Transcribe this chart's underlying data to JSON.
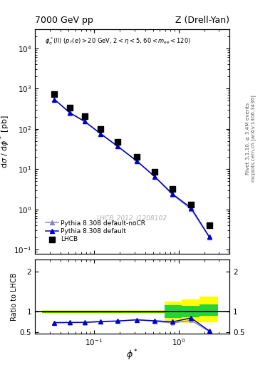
{
  "title_left": "7000 GeV pp",
  "title_right": "Z (Drell-Yan)",
  "annotation": "$\\phi^*_{\\eta}(ll)$ ($p_T(e) > 20$ GeV, $2 <\\eta < 5$, $60 < m_{ee} < 120$)",
  "watermark": "LHCB_2012_I1208102",
  "ylabel_main": "d$\\sigma$ / d$\\phi^*$ [pb]",
  "ylabel_ratio": "Ratio to LHCB",
  "xlabel": "$\\phi^*$",
  "right_label1": "Rivet 3.1.10, ≥ 3.4M events",
  "right_label2": "mcplots.cern.ch [arXiv:1306.3436]",
  "lhcb_x": [
    0.034,
    0.052,
    0.077,
    0.12,
    0.19,
    0.32,
    0.52,
    0.85,
    1.4,
    2.3
  ],
  "lhcb_y": [
    740,
    340,
    210,
    100,
    48,
    20,
    8.5,
    3.2,
    1.3,
    0.4
  ],
  "pythia_default_x": [
    0.034,
    0.052,
    0.077,
    0.12,
    0.19,
    0.32,
    0.52,
    0.85,
    1.4,
    2.3
  ],
  "pythia_default_y": [
    540,
    250,
    155,
    76,
    37,
    16,
    6.6,
    2.4,
    1.1,
    0.21
  ],
  "pythia_nocr_x": [
    0.034,
    0.052,
    0.077,
    0.12,
    0.19,
    0.32,
    0.52,
    0.85,
    1.4,
    2.3
  ],
  "pythia_nocr_y": [
    540,
    248,
    153,
    75,
    37,
    16,
    6.5,
    2.3,
    1.02,
    0.205
  ],
  "ratio_x": [
    0.034,
    0.052,
    0.077,
    0.12,
    0.19,
    0.32,
    0.52,
    0.85,
    1.4,
    2.3
  ],
  "ratio_default": [
    0.73,
    0.735,
    0.738,
    0.76,
    0.77,
    0.8,
    0.776,
    0.75,
    0.846,
    0.525
  ],
  "ratio_nocr": [
    0.73,
    0.729,
    0.729,
    0.75,
    0.77,
    0.8,
    0.765,
    0.719,
    0.785,
    0.513
  ],
  "band_x_edges": [
    0.024,
    0.043,
    0.064,
    0.095,
    0.15,
    0.255,
    0.42,
    0.675,
    1.075,
    1.75,
    2.9
  ],
  "band_yellow_lo": [
    0.96,
    0.96,
    0.96,
    0.96,
    0.96,
    0.96,
    0.96,
    0.74,
    0.72,
    0.74
  ],
  "band_yellow_hi": [
    1.04,
    1.04,
    1.04,
    1.04,
    1.04,
    1.04,
    1.04,
    1.26,
    1.3,
    1.38
  ],
  "band_green_lo": [
    0.975,
    0.975,
    0.975,
    0.975,
    0.975,
    0.975,
    0.975,
    0.84,
    0.86,
    0.9
  ],
  "band_green_hi": [
    1.025,
    1.025,
    1.025,
    1.025,
    1.025,
    1.025,
    1.025,
    1.16,
    1.14,
    1.18
  ],
  "color_default": "#0000cc",
  "color_nocr": "#8888cc",
  "color_lhcb": "#000000",
  "color_yellow": "#ffff00",
  "color_green": "#00cc44",
  "xlim": [
    0.02,
    4.0
  ],
  "ylim_main": [
    0.08,
    30000
  ],
  "ylim_ratio": [
    0.45,
    2.3
  ]
}
